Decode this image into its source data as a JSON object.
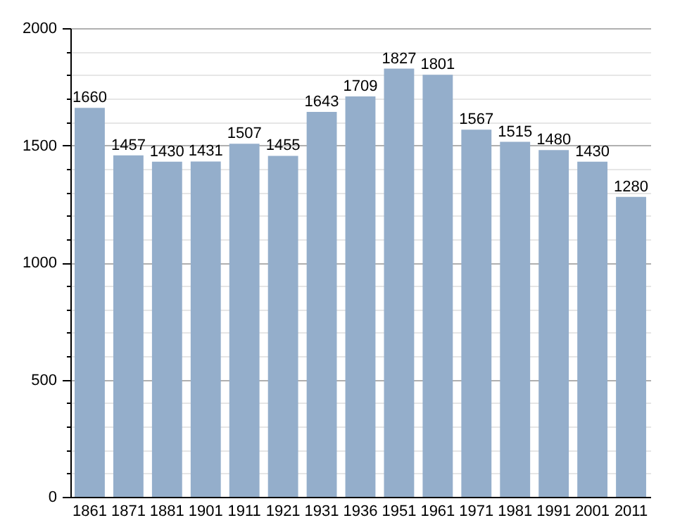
{
  "chart_data": {
    "type": "bar",
    "categories": [
      "1861",
      "1871",
      "1881",
      "1901",
      "1911",
      "1921",
      "1931",
      "1936",
      "1951",
      "1961",
      "1971",
      "1981",
      "1991",
      "2001",
      "2011"
    ],
    "values": [
      1660,
      1457,
      1430,
      1431,
      1507,
      1455,
      1643,
      1709,
      1827,
      1801,
      1567,
      1515,
      1480,
      1430,
      1280
    ],
    "color": "#94aecb",
    "data_labels": true,
    "grid": true,
    "ylim": [
      0,
      2000
    ],
    "yticks": [
      0,
      {
        "value": 100,
        "label": null
      },
      {
        "value": 200,
        "label": null
      },
      {
        "value": 300,
        "label": null
      },
      {
        "value": 400,
        "label": null
      },
      500,
      {
        "value": 600,
        "label": null
      },
      {
        "value": 700,
        "label": null
      },
      {
        "value": 800,
        "label": null
      },
      {
        "value": 900,
        "label": null
      },
      1000,
      {
        "value": 1100,
        "label": null
      },
      {
        "value": 1200,
        "label": null
      },
      {
        "value": 1300,
        "label": null
      },
      {
        "value": 1400,
        "label": null
      },
      1500,
      {
        "value": 1600,
        "label": null
      },
      {
        "value": 1700,
        "label": null
      },
      {
        "value": 1800,
        "label": null
      },
      {
        "value": 1900,
        "label": null
      },
      2000
    ]
  }
}
